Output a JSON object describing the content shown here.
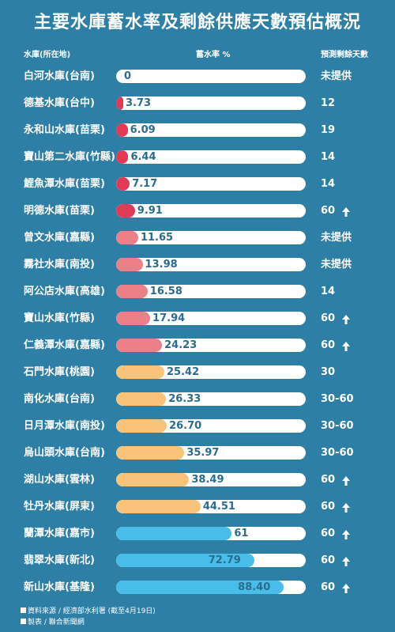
{
  "title": "主要水庫蓄水率及剩餘供應天數預估概況",
  "headers": {
    "reservoir": "水庫(所在地)",
    "rate": "蓄水率 %",
    "days": "預測剩餘天數"
  },
  "colors": {
    "very_low": "#e23a55",
    "low": "#ec8088",
    "mid": "#f9c47a",
    "high": "#48bde9",
    "arrow_up": "#ffffff"
  },
  "chart_data": {
    "type": "bar",
    "orientation": "horizontal",
    "xlim": [
      0,
      100
    ],
    "categories": [
      "白河水庫(台南)",
      "德基水庫(台中)",
      "永和山水庫(苗栗)",
      "寶山第二水庫(竹縣)",
      "鯉魚潭水庫(苗栗)",
      "明德水庫(苗栗)",
      "曾文水庫(嘉縣)",
      "霧社水庫(南投)",
      "阿公店水庫(高雄)",
      "寶山水庫(竹縣)",
      "仁義潭水庫(嘉縣)",
      "石門水庫(桃園)",
      "南化水庫(台南)",
      "日月潭水庫(南投)",
      "烏山頭水庫(台南)",
      "湖山水庫(雲林)",
      "牡丹水庫(屏東)",
      "蘭潭水庫(嘉市)",
      "翡翠水庫(新北)",
      "新山水庫(基隆)"
    ],
    "values": [
      0,
      3.73,
      6.09,
      6.44,
      7.17,
      9.91,
      11.65,
      13.98,
      16.58,
      17.94,
      24.23,
      25.42,
      26.33,
      26.7,
      35.97,
      38.49,
      44.51,
      61,
      72.79,
      88.4
    ],
    "value_labels": [
      "0",
      "3.73",
      "6.09",
      "6.44",
      "7.17",
      "9.91",
      "11.65",
      "13.98",
      "16.58",
      "17.94",
      "24.23",
      "25.42",
      "26.33",
      "26.70",
      "35.97",
      "38.49",
      "44.51",
      "61",
      "72.79",
      "88.40"
    ],
    "color_group": [
      "very_low",
      "very_low",
      "very_low",
      "very_low",
      "very_low",
      "very_low",
      "low",
      "low",
      "low",
      "low",
      "low",
      "mid",
      "mid",
      "mid",
      "mid",
      "mid",
      "mid",
      "high",
      "high",
      "high"
    ],
    "remaining_days": [
      "未提供",
      "12",
      "19",
      "14",
      "14",
      "60",
      "未提供",
      "未提供",
      "14",
      "60",
      "60",
      "30",
      "30-60",
      "30-60",
      "30-60",
      "60",
      "60",
      "60",
      "60",
      "60"
    ],
    "days_arrow": [
      false,
      false,
      false,
      false,
      false,
      true,
      false,
      false,
      false,
      true,
      true,
      false,
      false,
      false,
      false,
      true,
      true,
      true,
      true,
      true
    ],
    "arrow_icon": "arrow-up-icon"
  },
  "footer": {
    "source": "資料來源 / 經濟部水利署 (截至4月19日)",
    "credit": "製表 / 聯合新聞網"
  }
}
